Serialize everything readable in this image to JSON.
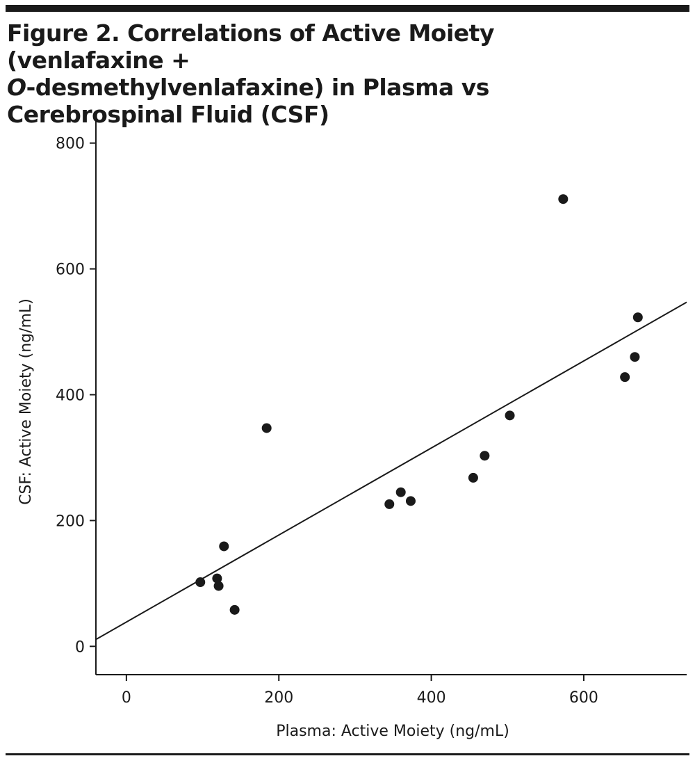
{
  "figure": {
    "title_lines": [
      "Figure 2. Correlations of Active Moiety (venlafaxine +",
      "-desmethylvenlafaxine) in Plasma vs",
      "Cerebrospinal Fluid (CSF)"
    ],
    "title_italic_prefix": "O"
  },
  "chart_data": {
    "type": "scatter",
    "title": "Figure 2. Correlations of Active Moiety (venlafaxine + O-desmethylvenlafaxine) in Plasma vs Cerebrospinal Fluid (CSF)",
    "xlabel": "Plasma: Active Moiety (ng/mL)",
    "ylabel": "CSF: Active Moiety (ng/mL)",
    "xlim": [
      -40,
      735
    ],
    "ylim": [
      -45,
      845
    ],
    "xticks": [
      0,
      200,
      400,
      600
    ],
    "yticks": [
      0,
      200,
      400,
      600,
      800
    ],
    "grid": false,
    "points": [
      {
        "x": 97,
        "y": 102
      },
      {
        "x": 119,
        "y": 108
      },
      {
        "x": 121,
        "y": 96
      },
      {
        "x": 128,
        "y": 159
      },
      {
        "x": 142,
        "y": 58
      },
      {
        "x": 184,
        "y": 347
      },
      {
        "x": 345,
        "y": 226
      },
      {
        "x": 360,
        "y": 245
      },
      {
        "x": 373,
        "y": 231
      },
      {
        "x": 455,
        "y": 268
      },
      {
        "x": 470,
        "y": 303
      },
      {
        "x": 503,
        "y": 367
      },
      {
        "x": 573,
        "y": 711
      },
      {
        "x": 654,
        "y": 428
      },
      {
        "x": 667,
        "y": 460
      },
      {
        "x": 671,
        "y": 523
      }
    ],
    "fit_line": {
      "x": [
        -40,
        735
      ],
      "y": [
        11,
        547
      ]
    },
    "colors": {
      "points": "#1a1a1a",
      "line": "#1a1a1a",
      "axes": "#1a1a1a"
    }
  }
}
